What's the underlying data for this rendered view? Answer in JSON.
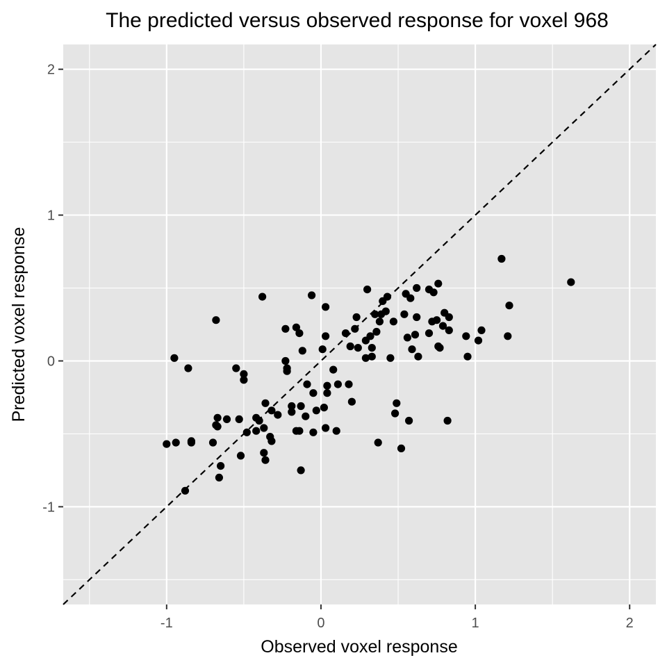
{
  "chart_data": {
    "type": "scatter",
    "title": "The predicted versus observed response for voxel 968",
    "xlabel": "Observed voxel response",
    "ylabel": "Predicted voxel response",
    "xlim": [
      -1.67,
      2.17
    ],
    "ylim": [
      -1.67,
      2.17
    ],
    "xticks": [
      -1,
      0,
      1,
      2
    ],
    "yticks": [
      -1,
      0,
      1,
      2
    ],
    "xtick_labels": [
      "-1",
      "0",
      "1",
      "2"
    ],
    "ytick_labels": [
      "-1",
      "0",
      "1",
      "2"
    ],
    "grid": true,
    "reference_line": {
      "style": "dashed",
      "slope": 1,
      "intercept": 0
    },
    "colors": {
      "panel": "#e5e5e5",
      "grid": "#ffffff",
      "points": "#000000",
      "tick_text": "#4d4d4d"
    },
    "points": [
      [
        -1.0,
        -0.57
      ],
      [
        -0.95,
        0.02
      ],
      [
        -0.94,
        -0.56
      ],
      [
        -0.88,
        -0.89
      ],
      [
        -0.86,
        -0.05
      ],
      [
        -0.84,
        -0.55
      ],
      [
        -0.84,
        -0.56
      ],
      [
        -0.7,
        -0.56
      ],
      [
        -0.68,
        0.28
      ],
      [
        -0.68,
        -0.44
      ],
      [
        -0.67,
        -0.39
      ],
      [
        -0.67,
        -0.45
      ],
      [
        -0.66,
        -0.8
      ],
      [
        -0.65,
        -0.72
      ],
      [
        -0.61,
        -0.4
      ],
      [
        -0.55,
        -0.05
      ],
      [
        -0.53,
        -0.4
      ],
      [
        -0.52,
        -0.65
      ],
      [
        -0.5,
        -0.09
      ],
      [
        -0.5,
        -0.13
      ],
      [
        -0.48,
        -0.49
      ],
      [
        -0.42,
        -0.48
      ],
      [
        -0.42,
        -0.39
      ],
      [
        -0.4,
        -0.41
      ],
      [
        -0.38,
        0.44
      ],
      [
        -0.37,
        -0.46
      ],
      [
        -0.37,
        -0.63
      ],
      [
        -0.36,
        -0.29
      ],
      [
        -0.36,
        -0.68
      ],
      [
        -0.33,
        -0.52
      ],
      [
        -0.32,
        -0.55
      ],
      [
        -0.32,
        -0.34
      ],
      [
        -0.28,
        -0.37
      ],
      [
        -0.23,
        0.0
      ],
      [
        -0.23,
        0.22
      ],
      [
        -0.22,
        -0.05
      ],
      [
        -0.22,
        -0.07
      ],
      [
        -0.19,
        -0.35
      ],
      [
        -0.19,
        -0.31
      ],
      [
        -0.16,
        0.23
      ],
      [
        -0.16,
        -0.48
      ],
      [
        -0.14,
        -0.48
      ],
      [
        -0.14,
        0.19
      ],
      [
        -0.13,
        -0.75
      ],
      [
        -0.13,
        -0.31
      ],
      [
        -0.12,
        0.07
      ],
      [
        -0.1,
        -0.38
      ],
      [
        -0.09,
        -0.16
      ],
      [
        -0.06,
        0.45
      ],
      [
        -0.05,
        -0.22
      ],
      [
        -0.05,
        -0.49
      ],
      [
        -0.03,
        -0.34
      ],
      [
        0.01,
        0.08
      ],
      [
        0.02,
        -0.32
      ],
      [
        0.03,
        0.37
      ],
      [
        0.03,
        0.17
      ],
      [
        0.03,
        -0.46
      ],
      [
        0.04,
        -0.22
      ],
      [
        0.04,
        -0.17
      ],
      [
        0.08,
        -0.06
      ],
      [
        0.1,
        -0.48
      ],
      [
        0.11,
        -0.16
      ],
      [
        0.16,
        0.19
      ],
      [
        0.18,
        -0.16
      ],
      [
        0.19,
        0.1
      ],
      [
        0.2,
        -0.28
      ],
      [
        0.22,
        0.22
      ],
      [
        0.23,
        0.3
      ],
      [
        0.24,
        0.09
      ],
      [
        0.29,
        0.14
      ],
      [
        0.29,
        0.02
      ],
      [
        0.3,
        0.49
      ],
      [
        0.32,
        0.17
      ],
      [
        0.33,
        0.09
      ],
      [
        0.33,
        0.03
      ],
      [
        0.35,
        0.32
      ],
      [
        0.36,
        0.2
      ],
      [
        0.37,
        -0.56
      ],
      [
        0.38,
        0.27
      ],
      [
        0.39,
        0.32
      ],
      [
        0.4,
        0.41
      ],
      [
        0.42,
        0.34
      ],
      [
        0.43,
        0.44
      ],
      [
        0.45,
        0.02
      ],
      [
        0.47,
        0.27
      ],
      [
        0.48,
        -0.36
      ],
      [
        0.49,
        -0.29
      ],
      [
        0.52,
        -0.6
      ],
      [
        0.54,
        0.32
      ],
      [
        0.55,
        0.46
      ],
      [
        0.56,
        0.16
      ],
      [
        0.57,
        -0.41
      ],
      [
        0.58,
        0.43
      ],
      [
        0.59,
        0.08
      ],
      [
        0.61,
        0.18
      ],
      [
        0.62,
        0.5
      ],
      [
        0.62,
        0.3
      ],
      [
        0.63,
        0.03
      ],
      [
        0.7,
        0.49
      ],
      [
        0.7,
        0.19
      ],
      [
        0.72,
        0.27
      ],
      [
        0.73,
        0.47
      ],
      [
        0.75,
        0.28
      ],
      [
        0.76,
        0.53
      ],
      [
        0.76,
        0.1
      ],
      [
        0.77,
        0.09
      ],
      [
        0.79,
        0.24
      ],
      [
        0.8,
        0.33
      ],
      [
        0.82,
        -0.41
      ],
      [
        0.83,
        0.21
      ],
      [
        0.83,
        0.3
      ],
      [
        0.94,
        0.17
      ],
      [
        0.95,
        0.03
      ],
      [
        1.02,
        0.14
      ],
      [
        1.04,
        0.21
      ],
      [
        1.17,
        0.7
      ],
      [
        1.21,
        0.17
      ],
      [
        1.22,
        0.38
      ],
      [
        1.62,
        0.54
      ]
    ]
  }
}
